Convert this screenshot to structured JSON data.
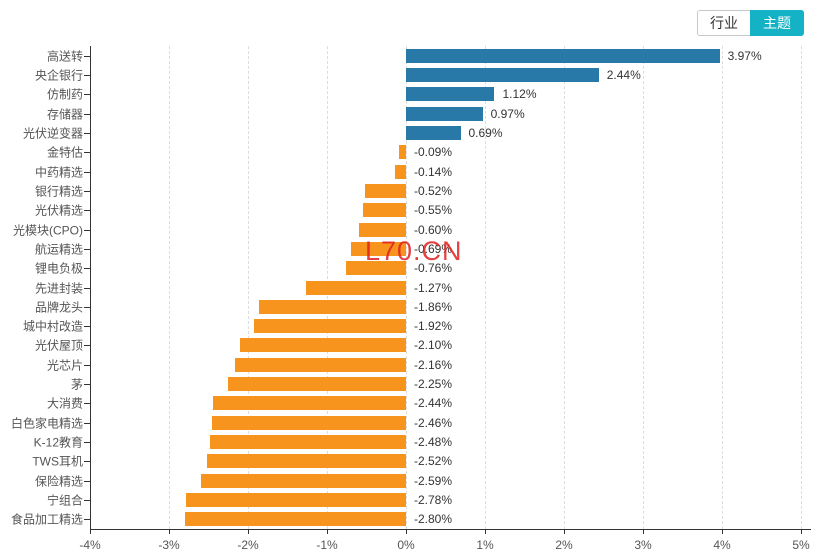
{
  "toggle": {
    "industry_label": "行业",
    "theme_label": "主题",
    "active": "theme",
    "active_color": "#15b2c5"
  },
  "watermark": {
    "text": "L70.CN",
    "color": "#e02020"
  },
  "chart_data": {
    "type": "bar",
    "orientation": "horizontal",
    "title": "",
    "xlabel": "",
    "ylabel": "",
    "xlim": [
      -4,
      5
    ],
    "grid": "vertical-dashed",
    "positive_color": "#2878a8",
    "negative_color": "#f7941e",
    "x_tick_labels": [
      "-4%",
      "-3%",
      "-2%",
      "-1%",
      "0%",
      "1%",
      "2%",
      "3%",
      "4%",
      "5%"
    ],
    "x_tick_values": [
      -4,
      -3,
      -2,
      -1,
      0,
      1,
      2,
      3,
      4,
      5
    ],
    "categories": [
      "高送转",
      "央企银行",
      "仿制药",
      "存储器",
      "光伏逆变器",
      "金特估",
      "中药精选",
      "银行精选",
      "光伏精选",
      "光模块(CPO)",
      "航运精选",
      "锂电负极",
      "先进封装",
      "品牌龙头",
      "城中村改造",
      "光伏屋顶",
      "光芯片",
      "茅",
      "大消费",
      "白色家电精选",
      "K-12教育",
      "TWS耳机",
      "保险精选",
      "宁组合",
      "食品加工精选"
    ],
    "values": [
      3.97,
      2.44,
      1.12,
      0.97,
      0.69,
      -0.09,
      -0.14,
      -0.52,
      -0.55,
      -0.6,
      -0.69,
      -0.76,
      -1.27,
      -1.86,
      -1.92,
      -2.1,
      -2.16,
      -2.25,
      -2.44,
      -2.46,
      -2.48,
      -2.52,
      -2.59,
      -2.78,
      -2.8
    ],
    "value_labels": [
      "3.97%",
      "2.44%",
      "1.12%",
      "0.97%",
      "0.69%",
      "-0.09%",
      "-0.14%",
      "-0.52%",
      "-0.55%",
      "-0.60%",
      "-0.69%",
      "-0.76%",
      "-1.27%",
      "-1.86%",
      "-1.92%",
      "-2.10%",
      "-2.16%",
      "-2.25%",
      "-2.44%",
      "-2.46%",
      "-2.48%",
      "-2.52%",
      "-2.59%",
      "-2.78%",
      "-2.80%"
    ]
  }
}
